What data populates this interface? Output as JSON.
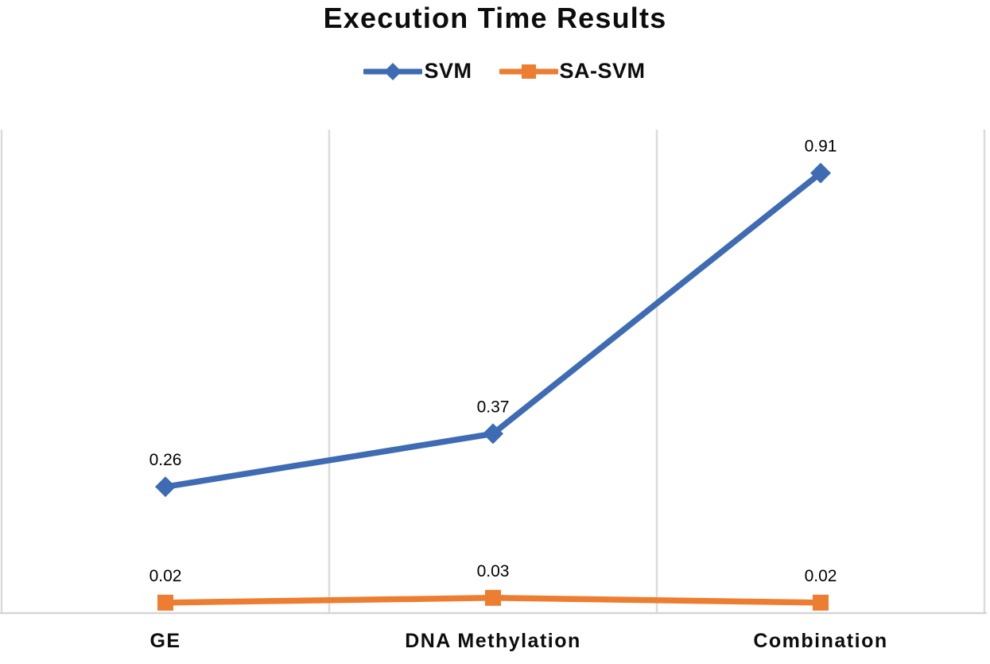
{
  "figure": {
    "kind": "line chart figure"
  },
  "chart_data": {
    "type": "line",
    "title": "Execution Time Results",
    "categories": [
      "GE",
      "DNA Methylation",
      "Combination"
    ],
    "series": [
      {
        "name": "SVM",
        "color": "#3E6BB4",
        "marker": "diamond",
        "values": [
          0.26,
          0.37,
          0.91
        ],
        "labels": [
          "0.26",
          "0.37",
          "0.91"
        ]
      },
      {
        "name": "SA-SVM",
        "color": "#ED7D31",
        "marker": "square",
        "values": [
          0.02,
          0.03,
          0.02
        ],
        "labels": [
          "0.02",
          "0.03",
          "0.02"
        ]
      }
    ],
    "xlabel": "",
    "ylabel": "",
    "ylim": [
      0,
      1.0
    ],
    "y_axis_visible": false,
    "grid": {
      "vertical_category_lines": true,
      "horizontal_lines": false,
      "color": "#DBDBDB"
    },
    "axis_line_color": "#D6D6D6",
    "data_label_color": "#000000",
    "category_label_color": "#0d0d0d",
    "legend_position": "top"
  }
}
